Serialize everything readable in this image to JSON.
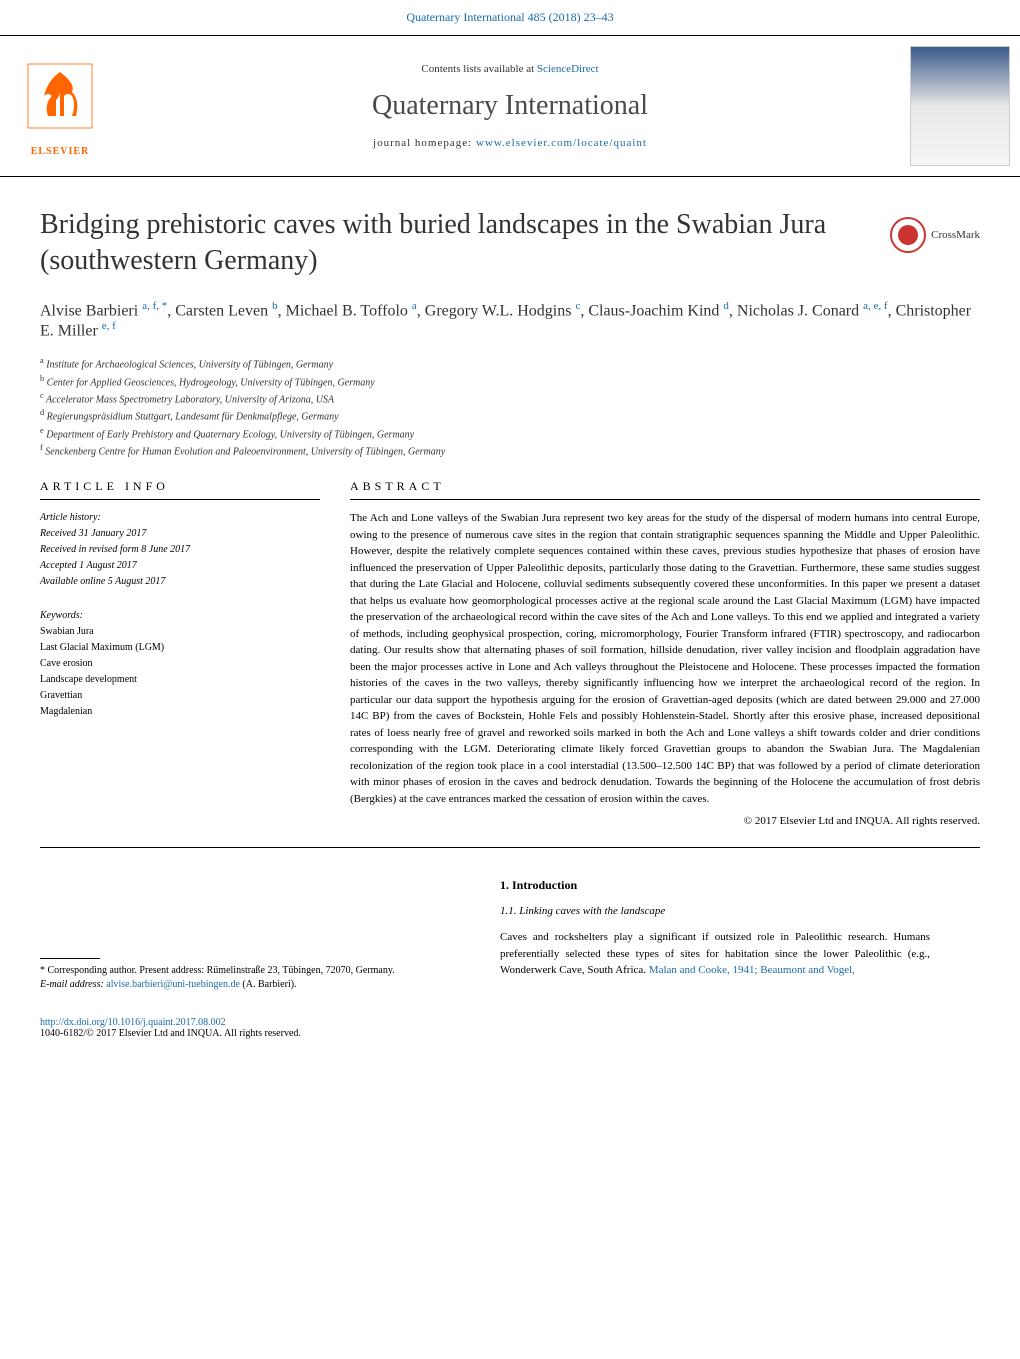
{
  "header": {
    "citation": "Quaternary International 485 (2018) 23–43",
    "contents_prefix": "Contents lists available at ",
    "contents_link": "ScienceDirect",
    "journal_name": "Quaternary International",
    "homepage_prefix": "journal homepage: ",
    "homepage_url": "www.elsevier.com/locate/quaint",
    "publisher": "ELSEVIER"
  },
  "crossmark": "CrossMark",
  "article": {
    "title": "Bridging prehistoric caves with buried landscapes in the Swabian Jura (southwestern Germany)",
    "authors_line1": "Alvise Barbieri ",
    "authors_sup1": "a, f, *",
    "authors_line2": ", Carsten Leven ",
    "authors_sup2": "b",
    "authors_line3": ", Michael B. Toffolo ",
    "authors_sup3": "a",
    "authors_line4": ", Gregory W.L. Hodgins ",
    "authors_sup4": "c",
    "authors_line5": ", Claus-Joachim Kind ",
    "authors_sup5": "d",
    "authors_line6": ", Nicholas J. Conard ",
    "authors_sup6": "a, e, f",
    "authors_line7": ", Christopher E. Miller ",
    "authors_sup7": "e, f",
    "affiliations": [
      {
        "sup": "a",
        "text": " Institute for Archaeological Sciences, University of Tübingen, Germany"
      },
      {
        "sup": "b",
        "text": " Center for Applied Geosciences, Hydrogeology, University of Tübingen, Germany"
      },
      {
        "sup": "c",
        "text": " Accelerator Mass Spectrometry Laboratory, University of Arizona, USA"
      },
      {
        "sup": "d",
        "text": " Regierungspräsidium Stuttgart, Landesamt für Denkmalpflege, Germany"
      },
      {
        "sup": "e",
        "text": " Department of Early Prehistory and Quaternary Ecology, University of Tübingen, Germany"
      },
      {
        "sup": "f",
        "text": " Senckenberg Centre for Human Evolution and Paleoenvironment, University of Tübingen, Germany"
      }
    ]
  },
  "article_info": {
    "heading": "ARTICLE INFO",
    "history_label": "Article history:",
    "received": "Received 31 January 2017",
    "revised": "Received in revised form 8 June 2017",
    "accepted": "Accepted 1 August 2017",
    "available": "Available online 5 August 2017",
    "keywords_label": "Keywords:",
    "keywords": [
      "Swabian Jura",
      "Last Glacial Maximum (LGM)",
      "Cave erosion",
      "Landscape development",
      "Gravettian",
      "Magdalenian"
    ]
  },
  "abstract": {
    "heading": "ABSTRACT",
    "text": "The Ach and Lone valleys of the Swabian Jura represent two key areas for the study of the dispersal of modern humans into central Europe, owing to the presence of numerous cave sites in the region that contain stratigraphic sequences spanning the Middle and Upper Paleolithic. However, despite the relatively complete sequences contained within these caves, previous studies hypothesize that phases of erosion have influenced the preservation of Upper Paleolithic deposits, particularly those dating to the Gravettian. Furthermore, these same studies suggest that during the Late Glacial and Holocene, colluvial sediments subsequently covered these unconformities. In this paper we present a dataset that helps us evaluate how geomorphological processes active at the regional scale around the Last Glacial Maximum (LGM) have impacted the preservation of the archaeological record within the cave sites of the Ach and Lone valleys. To this end we applied and integrated a variety of methods, including geophysical prospection, coring, micromorphology, Fourier Transform infrared (FTIR) spectroscopy, and radiocarbon dating. Our results show that alternating phases of soil formation, hillside denudation, river valley incision and floodplain aggradation have been the major processes active in Lone and Ach valleys throughout the Pleistocene and Holocene. These processes impacted the formation histories of the caves in the two valleys, thereby significantly influencing how we interpret the archaeological record of the region. In particular our data support the hypothesis arguing for the erosion of Gravettian-aged deposits (which are dated between 29.000 and 27.000 14C BP) from the caves of Bockstein, Hohle Fels and possibly Hohlenstein-Stadel. Shortly after this erosive phase, increased depositional rates of loess nearly free of gravel and reworked soils marked in both the Ach and Lone valleys a shift towards colder and drier conditions corresponding with the LGM. Deteriorating climate likely forced Gravettian groups to abandon the Swabian Jura. The Magdalenian recolonization of the region took place in a cool interstadial (13.500–12.500 14C BP) that was followed by a period of climate deterioration with minor phases of erosion in the caves and bedrock denudation. Towards the beginning of the Holocene the accumulation of frost debris (Bergkies) at the cave entrances marked the cessation of erosion within the caves.",
    "copyright": "© 2017 Elsevier Ltd and INQUA. All rights reserved."
  },
  "introduction": {
    "heading": "1. Introduction",
    "subheading": "1.1. Linking caves with the landscape",
    "text_part1": "Caves and rockshelters play a significant if outsized role in Paleolithic research. Humans preferentially selected these types of sites for habitation since the lower Paleolithic (e.g., Wonderwerk Cave, South Africa. ",
    "ref": "Malan and Cooke, 1941; Beaumont and Vogel,"
  },
  "footnote": {
    "corresponding": "* Corresponding author. Present address: Rümelinstraße 23, Tübingen, 72070, Germany.",
    "email_label": "E-mail address: ",
    "email": "alvise.barbieri@uni-tuebingen.de",
    "email_suffix": " (A. Barbieri)."
  },
  "footer": {
    "doi": "http://dx.doi.org/10.1016/j.quaint.2017.08.002",
    "copyright": "1040-6182/© 2017 Elsevier Ltd and INQUA. All rights reserved."
  }
}
